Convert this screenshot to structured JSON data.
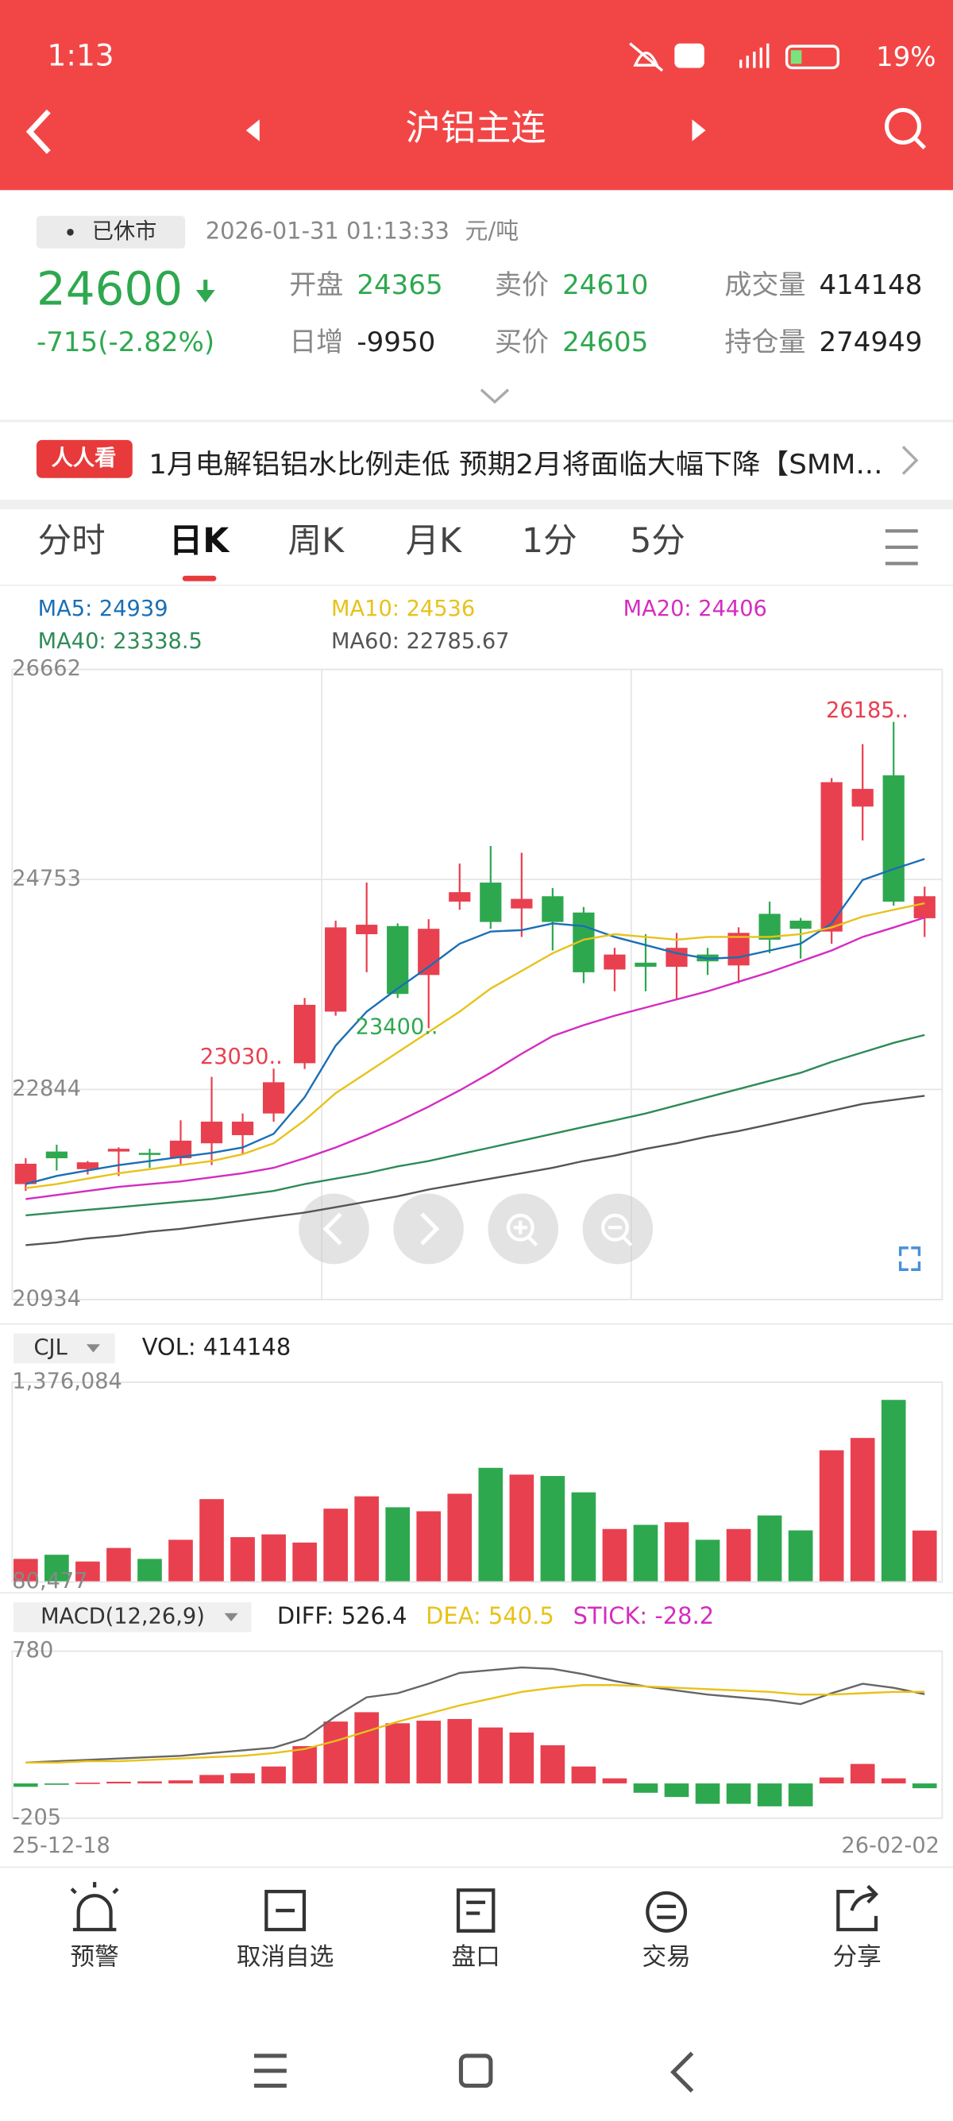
{
  "status_bar": {
    "time": "1:13",
    "battery": "19%"
  },
  "header": {
    "title": "沪铝主连"
  },
  "quote": {
    "status": "已休市",
    "timestamp": "2026-01-31 01:13:33",
    "unit": "元/吨",
    "price": "24600",
    "change": "-715(-2.82%)",
    "fields": [
      {
        "label": "开盘",
        "value": "24365",
        "color": "#2ea84f"
      },
      {
        "label": "日增",
        "value": "-9950",
        "color": "#222222"
      },
      {
        "label": "卖价",
        "value": "24610",
        "color": "#2ea84f"
      },
      {
        "label": "买价",
        "value": "24605",
        "color": "#2ea84f"
      },
      {
        "label": "成交量",
        "value": "414148",
        "color": "#222222"
      },
      {
        "label": "持仓量",
        "value": "274949",
        "color": "#222222"
      }
    ]
  },
  "news": {
    "badge": "人人看",
    "headline": "1月电解铝铝水比例走低 预期2月将面临大幅下降【SMM..."
  },
  "tabs": [
    "分时",
    "日K",
    "周K",
    "月K",
    "1分",
    "5分"
  ],
  "active_tab": "日K",
  "toolbar": [
    "预警",
    "取消自选",
    "盘口",
    "交易",
    "分享"
  ],
  "chart_data": [
    {
      "type": "candlestick",
      "up_color": "#e8404f",
      "down_color": "#2ea84f",
      "grid": true,
      "ylim": [
        20934,
        26662
      ],
      "yticks": [
        20934,
        22844,
        24753,
        26662
      ],
      "open": [
        21983,
        22279,
        22119,
        22279,
        22267,
        22218,
        22354,
        22428,
        22625,
        23082,
        23551,
        24255,
        24329,
        23884,
        24551,
        24724,
        24489,
        24600,
        24452,
        23934,
        23996,
        23959,
        24070,
        23971,
        24440,
        24378,
        24279,
        25415,
        25699,
        24400
      ],
      "close": [
        22168,
        22218,
        22181,
        22304,
        22255,
        22378,
        22551,
        22551,
        22909,
        23613,
        24317,
        24341,
        23712,
        24304,
        24637,
        24366,
        24576,
        24366,
        23909,
        24070,
        23959,
        24131,
        24008,
        24267,
        24205,
        24304,
        25637,
        25576,
        24551,
        24600
      ],
      "low": [
        21921,
        22107,
        22070,
        22057,
        22131,
        22156,
        22156,
        22255,
        22551,
        23030,
        23514,
        23909,
        23675,
        23400,
        24477,
        24304,
        24230,
        24107,
        23810,
        23736,
        23736,
        23662,
        23884,
        23810,
        24082,
        24033,
        24168,
        25107,
        24514,
        24230
      ],
      "high": [
        22218,
        22341,
        22193,
        22317,
        22304,
        22563,
        22958,
        22625,
        23033,
        23675,
        24378,
        24724,
        24353,
        24391,
        24897,
        25057,
        24995,
        24674,
        24502,
        24131,
        24255,
        24267,
        24131,
        24317,
        24551,
        24403,
        25674,
        25983,
        26185,
        24687
      ],
      "series": [
        {
          "label": "MA5: 24939",
          "color": "#1a6fb5",
          "values": [
            21983,
            22057,
            22107,
            22156,
            22193,
            22230,
            22267,
            22316,
            22440,
            22773,
            23242,
            23551,
            23761,
            23958,
            24168,
            24279,
            24292,
            24353,
            24329,
            24230,
            24156,
            24082,
            24032,
            24045,
            24107,
            24168,
            24353,
            24748,
            24847,
            24939
          ]
        },
        {
          "label": "MA10: 24536",
          "color": "#e8c21a",
          "values": [
            21946,
            21983,
            22033,
            22082,
            22119,
            22156,
            22193,
            22255,
            22354,
            22563,
            22810,
            22995,
            23181,
            23366,
            23551,
            23761,
            23921,
            24082,
            24205,
            24255,
            24230,
            24205,
            24230,
            24230,
            24230,
            24255,
            24316,
            24415,
            24477,
            24536
          ]
        },
        {
          "label": "MA20: 24406",
          "color": "#d42cc0",
          "values": [
            21847,
            21884,
            21921,
            21958,
            21983,
            22008,
            22045,
            22082,
            22131,
            22218,
            22316,
            22428,
            22551,
            22687,
            22835,
            22995,
            23168,
            23329,
            23428,
            23514,
            23588,
            23662,
            23736,
            23823,
            23909,
            24008,
            24107,
            24230,
            24316,
            24406
          ]
        },
        {
          "label": "MA40: 23338.5",
          "color": "#2e8b57",
          "values": [
            21699,
            21724,
            21749,
            21773,
            21798,
            21823,
            21847,
            21884,
            21921,
            21983,
            22033,
            22082,
            22144,
            22193,
            22255,
            22316,
            22378,
            22440,
            22502,
            22563,
            22625,
            22699,
            22773,
            22847,
            22921,
            22995,
            23094,
            23181,
            23267,
            23338.5
          ]
        },
        {
          "label": "MA60: 22785.67",
          "color": "#555555",
          "values": [
            21428,
            21452,
            21489,
            21514,
            21551,
            21576,
            21613,
            21650,
            21687,
            21724,
            21773,
            21823,
            21872,
            21934,
            21983,
            22033,
            22082,
            22131,
            22193,
            22242,
            22304,
            22354,
            22415,
            22465,
            22526,
            22588,
            22650,
            22712,
            22749,
            22785.67
          ]
        }
      ],
      "annotations": [
        {
          "text": "23030..",
          "color": "#e8404f"
        },
        {
          "text": "23400..",
          "color": "#2ea84f"
        },
        {
          "text": "26185..",
          "color": "#e8404f"
        }
      ]
    },
    {
      "type": "bar",
      "indicator": "CJL",
      "label": "VOL: 414148",
      "ylim": [
        80477,
        1376084
      ],
      "yticks": [
        {
          "value": 80477,
          "label": "80,477"
        },
        {
          "value": 1376084,
          "label": "1,376,084"
        }
      ],
      "values": [
        230000,
        257000,
        213000,
        301000,
        230000,
        354000,
        618000,
        371000,
        389000,
        336000,
        556000,
        636000,
        565000,
        539000,
        653000,
        821000,
        777000,
        768000,
        662000,
        424000,
        451000,
        468000,
        354000,
        424000,
        512000,
        415000,
        935000,
        1015000,
        1262000,
        414148
      ]
    },
    {
      "type": "macd",
      "indicator": "MACD(12,26,9)",
      "up_color": "#e8404f",
      "down_color": "#2ea84f",
      "stick_label": "STICK: -28.2",
      "stick_label_color": "#d42cc0",
      "ylim": [
        -205,
        780
      ],
      "yticks": [
        -205,
        780
      ],
      "categories": [
        "25-12-18",
        null,
        null,
        null,
        null,
        null,
        null,
        null,
        null,
        null,
        null,
        null,
        null,
        null,
        null,
        null,
        null,
        null,
        null,
        null,
        null,
        null,
        null,
        null,
        null,
        null,
        null,
        null,
        null,
        "26-02-02"
      ],
      "values": [
        -20,
        -5,
        5,
        10,
        12,
        18,
        50,
        60,
        100,
        220,
        365,
        420,
        355,
        370,
        380,
        330,
        300,
        225,
        100,
        30,
        -55,
        -80,
        -120,
        -120,
        -135,
        -135,
        35,
        115,
        30,
        -28.2
      ],
      "series": [
        {
          "label": "DIFF: 526.4",
          "color": "#666666",
          "label_color": "#222222",
          "values": [
            123,
            131,
            139,
            147,
            155,
            163,
            179,
            195,
            211,
            267,
            396,
            508,
            532,
            588,
            652,
            668,
            684,
            676,
            644,
            604,
            572,
            548,
            524,
            508,
            492,
            468,
            532,
            588,
            564,
            526.4
          ]
        },
        {
          "label": "DEA: 540.5",
          "color": "#e8c21a",
          "label_color": "#e8c21a",
          "values": [
            123,
            123,
            131,
            131,
            139,
            147,
            155,
            163,
            179,
            203,
            251,
            307,
            364,
            412,
            460,
            500,
            540,
            564,
            580,
            580,
            572,
            564,
            556,
            548,
            540,
            524,
            524,
            532,
            540,
            540.5
          ]
        }
      ]
    }
  ]
}
